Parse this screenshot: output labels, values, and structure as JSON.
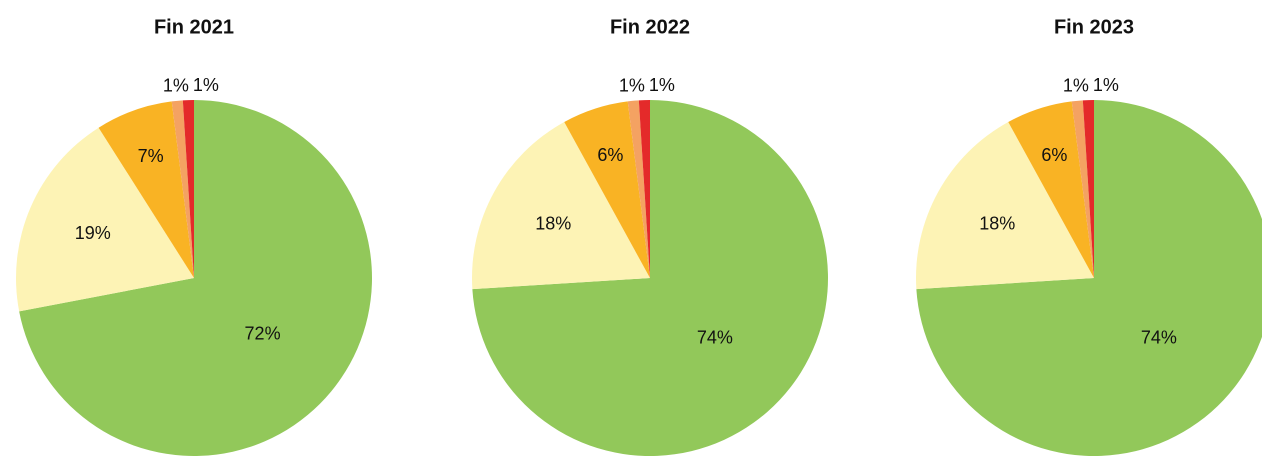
{
  "chart_data": [
    {
      "type": "pie",
      "title": "Fin 2021",
      "values": [
        72,
        19,
        7,
        1,
        1
      ],
      "value_labels": [
        "72%",
        "19%",
        "7%",
        "1%",
        "1%"
      ],
      "colors": [
        "#92c85a",
        "#fdf3b5",
        "#f9b324",
        "#f4a262",
        "#e42a2a"
      ]
    },
    {
      "type": "pie",
      "title": "Fin 2022",
      "values": [
        74,
        18,
        6,
        1,
        1
      ],
      "value_labels": [
        "74%",
        "18%",
        "6%",
        "1%",
        "1%"
      ],
      "colors": [
        "#92c85a",
        "#fdf3b5",
        "#f9b324",
        "#f4a262",
        "#e42a2a"
      ]
    },
    {
      "type": "pie",
      "title": "Fin 2023",
      "values": [
        74,
        18,
        6,
        1,
        1
      ],
      "value_labels": [
        "74%",
        "18%",
        "6%",
        "1%",
        "1%"
      ],
      "colors": [
        "#92c85a",
        "#fdf3b5",
        "#f9b324",
        "#f4a262",
        "#e42a2a"
      ]
    }
  ]
}
